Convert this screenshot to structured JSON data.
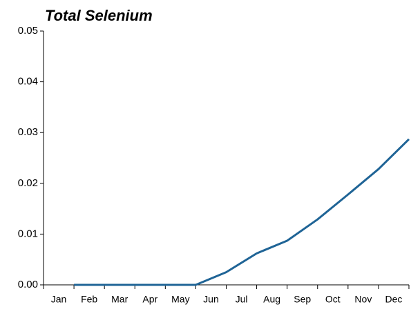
{
  "chart_data": {
    "type": "line",
    "title": "Total Selenium",
    "categories": [
      "Jan",
      "Feb",
      "Mar",
      "Apr",
      "May",
      "Jun",
      "Jul",
      "Aug",
      "Sep",
      "Oct",
      "Nov",
      "Dec"
    ],
    "series": [
      {
        "name": "Total Selenium",
        "color": "#1f6496",
        "values": [
          0,
          0,
          0,
          0,
          0,
          0.0025,
          0.0062,
          0.0087,
          0.0129,
          0.0178,
          0.0228,
          0.0287
        ]
      }
    ],
    "ylim": [
      0,
      0.05
    ],
    "yticks": [
      {
        "value": 0,
        "label": "0.00"
      },
      {
        "value": 0.01,
        "label": "0.01"
      },
      {
        "value": 0.02,
        "label": "0.02"
      },
      {
        "value": 0.03,
        "label": "0.03"
      },
      {
        "value": 0.04,
        "label": "0.04"
      },
      {
        "value": 0.05,
        "label": "0.05"
      }
    ]
  }
}
